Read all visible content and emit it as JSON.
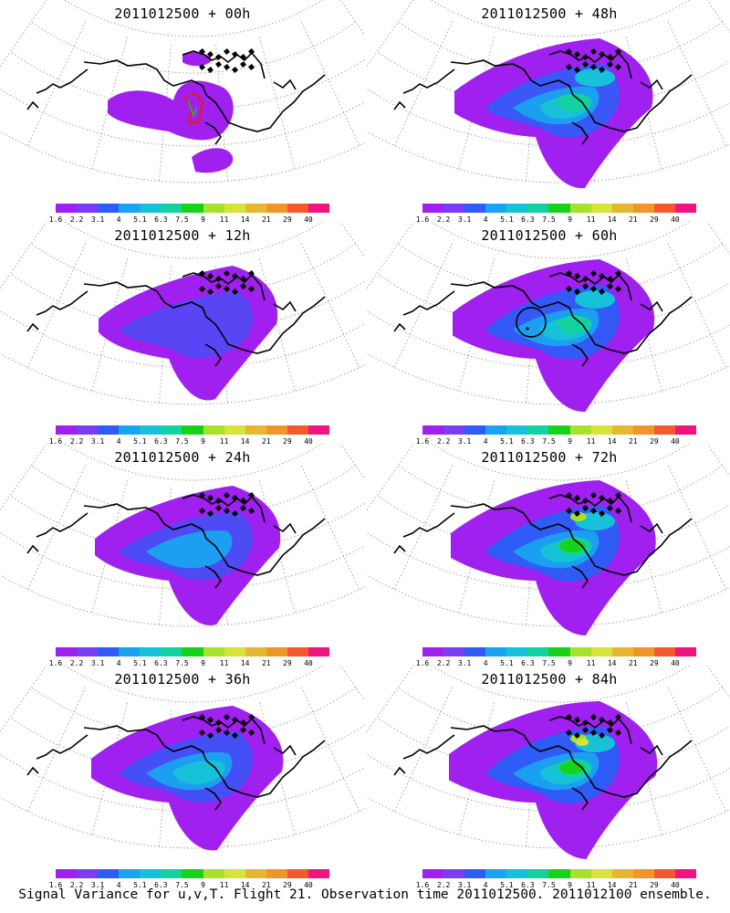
{
  "colorbar": {
    "labels": [
      "1.6",
      "2.2",
      "3.1",
      "4",
      "5.1",
      "6.3",
      "7.5",
      "9",
      "11",
      "14",
      "21",
      "29",
      "40"
    ],
    "colors": [
      "#a020f0",
      "#7a3ef0",
      "#2f5cf7",
      "#1aa3f0",
      "#17c2d8",
      "#14d2a0",
      "#17d21b",
      "#a6e22a",
      "#d8e33a",
      "#e6b732",
      "#f0952c",
      "#f25a2e",
      "#f0147e"
    ]
  },
  "panels": [
    {
      "title": "2011012500 + 00h",
      "level": 0,
      "marker": "track"
    },
    {
      "title": "2011012500 + 48h",
      "level": 4,
      "marker": ""
    },
    {
      "title": "2011012500 + 12h",
      "level": 1,
      "marker": ""
    },
    {
      "title": "2011012500 + 60h",
      "level": 4.5,
      "marker": "circle"
    },
    {
      "title": "2011012500 + 24h",
      "level": 2,
      "marker": ""
    },
    {
      "title": "2011012500 + 72h",
      "level": 5,
      "marker": ""
    },
    {
      "title": "2011012500 + 36h",
      "level": 3,
      "marker": ""
    },
    {
      "title": "2011012500 + 84h",
      "level": 5.5,
      "marker": ""
    }
  ],
  "footer": "Signal Variance for u,v,T. Flight 21. Observation time 2011012500. 2011012100 ensemble."
}
